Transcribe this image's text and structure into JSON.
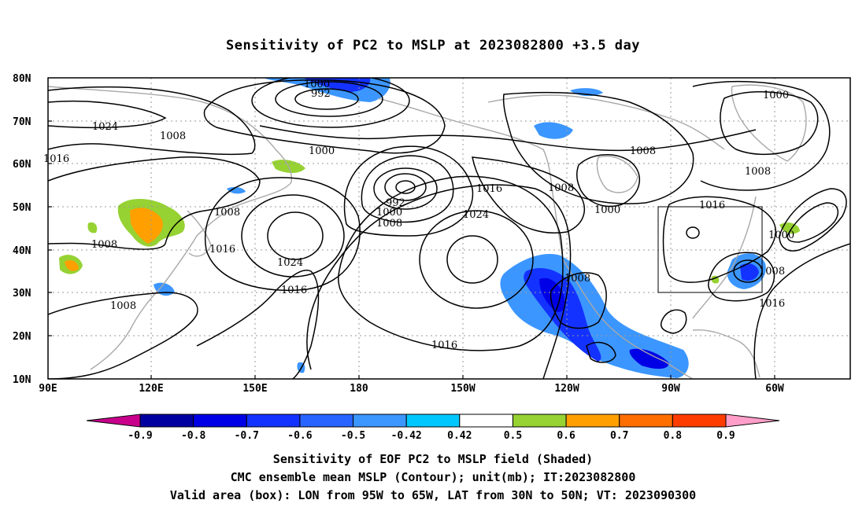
{
  "title": "Sensitivity of PC2 to MSLP at 2023082800 +3.5 day",
  "map": {
    "lat_labels": [
      "80N",
      "70N",
      "60N",
      "50N",
      "40N",
      "30N",
      "20N",
      "10N"
    ],
    "lon_labels": [
      "90E",
      "120E",
      "150E",
      "180",
      "150W",
      "120W",
      "90W",
      "60W"
    ],
    "contour_labels": [
      {
        "text": "1000"
      },
      {
        "text": "992"
      },
      {
        "text": "1024"
      },
      {
        "text": "1008"
      },
      {
        "text": "1016"
      },
      {
        "text": "1000"
      },
      {
        "text": "992"
      },
      {
        "text": "1000"
      },
      {
        "text": "1008"
      },
      {
        "text": "1008"
      },
      {
        "text": "1016"
      },
      {
        "text": "1024"
      },
      {
        "text": "1016"
      },
      {
        "text": "1008"
      },
      {
        "text": "1008"
      },
      {
        "text": "1016"
      },
      {
        "text": "1024"
      },
      {
        "text": "1008"
      },
      {
        "text": "1000"
      },
      {
        "text": "1008"
      },
      {
        "text": "1008"
      },
      {
        "text": "1000"
      },
      {
        "text": "1016"
      },
      {
        "text": "1000"
      },
      {
        "text": "1008"
      },
      {
        "text": "1016"
      },
      {
        "text": "1016"
      },
      {
        "text": "1008"
      }
    ],
    "valid_box": {
      "lon_from": "95W",
      "lon_to": "65W",
      "lat_from": "30N",
      "lat_to": "50N"
    }
  },
  "colorbar": {
    "labels": [
      "-0.9",
      "-0.8",
      "-0.7",
      "-0.6",
      "-0.5",
      "-0.42",
      "0.42",
      "0.5",
      "0.6",
      "0.7",
      "0.8",
      "0.9"
    ],
    "colors": {
      "low_end": "#c8008c",
      "bins": [
        "#0000a0",
        "#0000e6",
        "#1432ff",
        "#2864ff",
        "#3c96ff",
        "#00c8ff",
        "#ffffff",
        "#96d232",
        "#ffa000",
        "#ff6e00",
        "#ff3c00",
        "#ff0000"
      ],
      "high_end": "#ff9ec8"
    }
  },
  "captions": {
    "line1": "Sensitivity of EOF PC2 to MSLP field (Shaded)",
    "line2": "CMC ensemble mean MSLP (Contour); unit(mb); IT:2023082800",
    "line3": "Valid area (box): LON from 95W to 65W, LAT from 30N to 50N; VT: 2023090300"
  }
}
